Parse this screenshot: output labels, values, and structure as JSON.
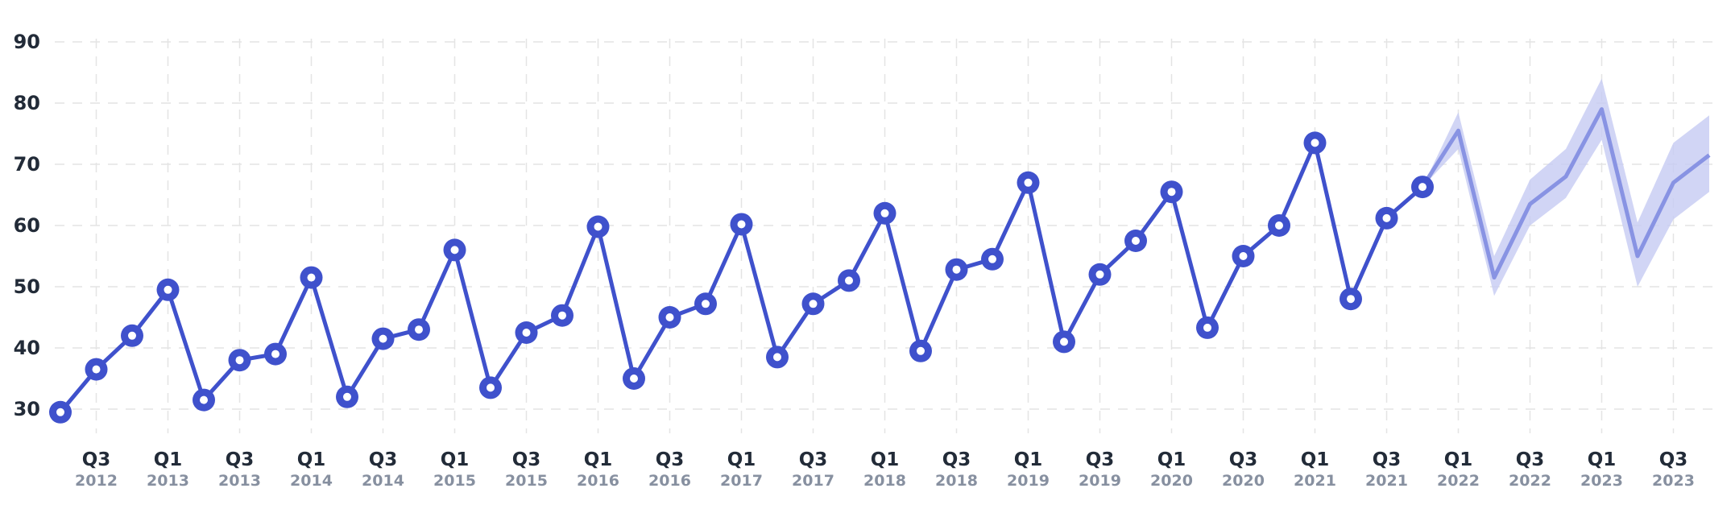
{
  "chart_data": {
    "type": "line",
    "title": "",
    "xlabel": "",
    "ylabel": "",
    "ylim": [
      25,
      90
    ],
    "yticks": [
      30,
      40,
      50,
      60,
      70,
      80,
      90
    ],
    "grid": true,
    "x_tick_labels": [
      {
        "q": "Q3",
        "y": "2012"
      },
      {
        "q": "Q1",
        "y": "2013"
      },
      {
        "q": "Q3",
        "y": "2013"
      },
      {
        "q": "Q1",
        "y": "2014"
      },
      {
        "q": "Q3",
        "y": "2014"
      },
      {
        "q": "Q1",
        "y": "2015"
      },
      {
        "q": "Q3",
        "y": "2015"
      },
      {
        "q": "Q1",
        "y": "2016"
      },
      {
        "q": "Q3",
        "y": "2016"
      },
      {
        "q": "Q1",
        "y": "2017"
      },
      {
        "q": "Q3",
        "y": "2017"
      },
      {
        "q": "Q1",
        "y": "2018"
      },
      {
        "q": "Q3",
        "y": "2018"
      },
      {
        "q": "Q1",
        "y": "2019"
      },
      {
        "q": "Q3",
        "y": "2019"
      },
      {
        "q": "Q1",
        "y": "2020"
      },
      {
        "q": "Q3",
        "y": "2020"
      },
      {
        "q": "Q1",
        "y": "2021"
      },
      {
        "q": "Q3",
        "y": "2021"
      },
      {
        "q": "Q1",
        "y": "2022"
      },
      {
        "q": "Q3",
        "y": "2022"
      },
      {
        "q": "Q1",
        "y": "2023"
      },
      {
        "q": "Q3",
        "y": "2023"
      }
    ],
    "series": [
      {
        "role": "actual",
        "color": "#3f51cc",
        "x": [
          "2012-Q2",
          "2012-Q3",
          "2012-Q4",
          "2013-Q1",
          "2013-Q2",
          "2013-Q3",
          "2013-Q4",
          "2014-Q1",
          "2014-Q2",
          "2014-Q3",
          "2014-Q4",
          "2015-Q1",
          "2015-Q2",
          "2015-Q3",
          "2015-Q4",
          "2016-Q1",
          "2016-Q2",
          "2016-Q3",
          "2016-Q4",
          "2017-Q1",
          "2017-Q2",
          "2017-Q3",
          "2017-Q4",
          "2018-Q1",
          "2018-Q2",
          "2018-Q3",
          "2018-Q4",
          "2019-Q1",
          "2019-Q2",
          "2019-Q3",
          "2019-Q4",
          "2020-Q1",
          "2020-Q2",
          "2020-Q3",
          "2020-Q4",
          "2021-Q1",
          "2021-Q2",
          "2021-Q3",
          "2021-Q4"
        ],
        "values": [
          29.5,
          36.5,
          42,
          49.5,
          31.5,
          38,
          39,
          51.5,
          32,
          41.5,
          43,
          56,
          33.5,
          42.5,
          45.3,
          59.8,
          35,
          45,
          47.2,
          60.2,
          38.5,
          47.2,
          51,
          62,
          39.5,
          52.8,
          54.5,
          67,
          41,
          52,
          57.5,
          65.5,
          43.3,
          55,
          60,
          73.5,
          48,
          61.2,
          66.3
        ]
      },
      {
        "role": "forecast",
        "color": "#8893e3",
        "band_color": "#c6cbf3",
        "x": [
          "2021-Q4",
          "2022-Q1",
          "2022-Q2",
          "2022-Q3",
          "2022-Q4",
          "2023-Q1",
          "2023-Q2",
          "2023-Q3",
          "2023-Q4"
        ],
        "values": [
          66.3,
          75.5,
          51.5,
          63.5,
          68,
          79,
          55,
          67,
          71.5
        ],
        "lower": [
          66.3,
          72.5,
          48.5,
          60,
          64.5,
          74,
          50,
          61,
          65.5
        ],
        "upper": [
          66.3,
          78.5,
          55,
          67.5,
          72.5,
          84,
          60.5,
          73.5,
          78
        ]
      }
    ]
  }
}
